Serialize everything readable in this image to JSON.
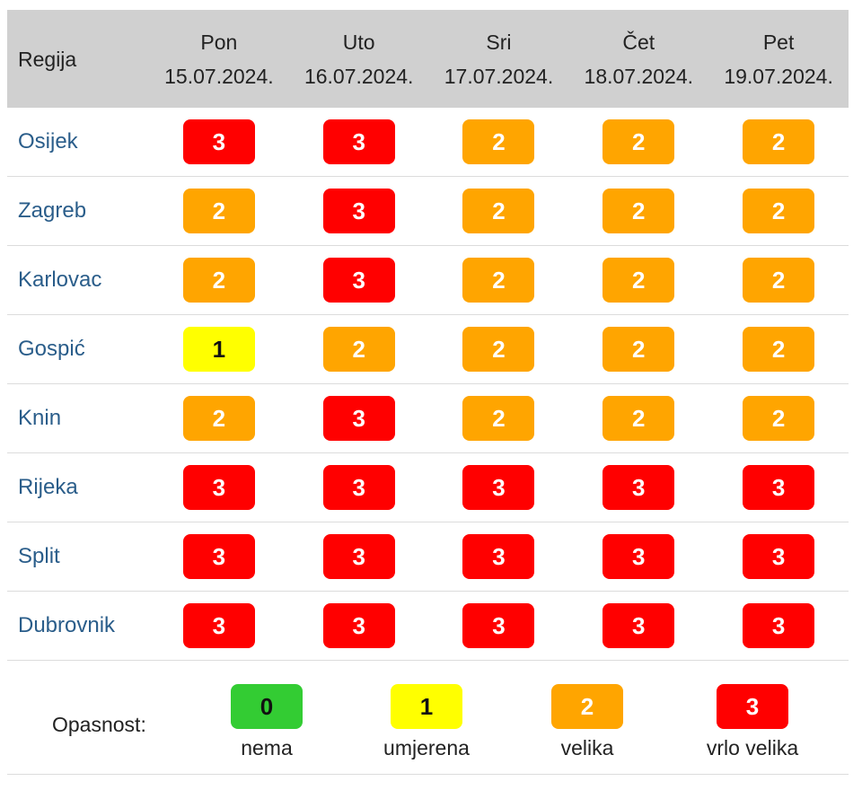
{
  "table": {
    "region_header": "Regija",
    "days": [
      {
        "name": "Pon",
        "date": "15.07.2024."
      },
      {
        "name": "Uto",
        "date": "16.07.2024."
      },
      {
        "name": "Sri",
        "date": "17.07.2024."
      },
      {
        "name": "Čet",
        "date": "18.07.2024."
      },
      {
        "name": "Pet",
        "date": "19.07.2024."
      }
    ],
    "rows": [
      {
        "region": "Osijek",
        "levels": [
          "3",
          "3",
          "2",
          "2",
          "2"
        ]
      },
      {
        "region": "Zagreb",
        "levels": [
          "2",
          "3",
          "2",
          "2",
          "2"
        ]
      },
      {
        "region": "Karlovac",
        "levels": [
          "2",
          "3",
          "2",
          "2",
          "2"
        ]
      },
      {
        "region": "Gospić",
        "levels": [
          "1",
          "2",
          "2",
          "2",
          "2"
        ]
      },
      {
        "region": "Knin",
        "levels": [
          "2",
          "3",
          "2",
          "2",
          "2"
        ]
      },
      {
        "region": "Rijeka",
        "levels": [
          "3",
          "3",
          "3",
          "3",
          "3"
        ]
      },
      {
        "region": "Split",
        "levels": [
          "3",
          "3",
          "3",
          "3",
          "3"
        ]
      },
      {
        "region": "Dubrovnik",
        "levels": [
          "3",
          "3",
          "3",
          "3",
          "3"
        ]
      }
    ]
  },
  "legend": {
    "label": "Opasnost:",
    "items": [
      {
        "level": "0",
        "text": "nema",
        "color": "#33cc33"
      },
      {
        "level": "1",
        "text": "umjerena",
        "color": "#ffff00"
      },
      {
        "level": "2",
        "text": "velika",
        "color": "#ffa500"
      },
      {
        "level": "3",
        "text": "vrlo velika",
        "color": "#ff0000"
      }
    ]
  },
  "colors": {
    "header_bg": "#d0d0d0",
    "region_text": "#2a5d8a"
  }
}
